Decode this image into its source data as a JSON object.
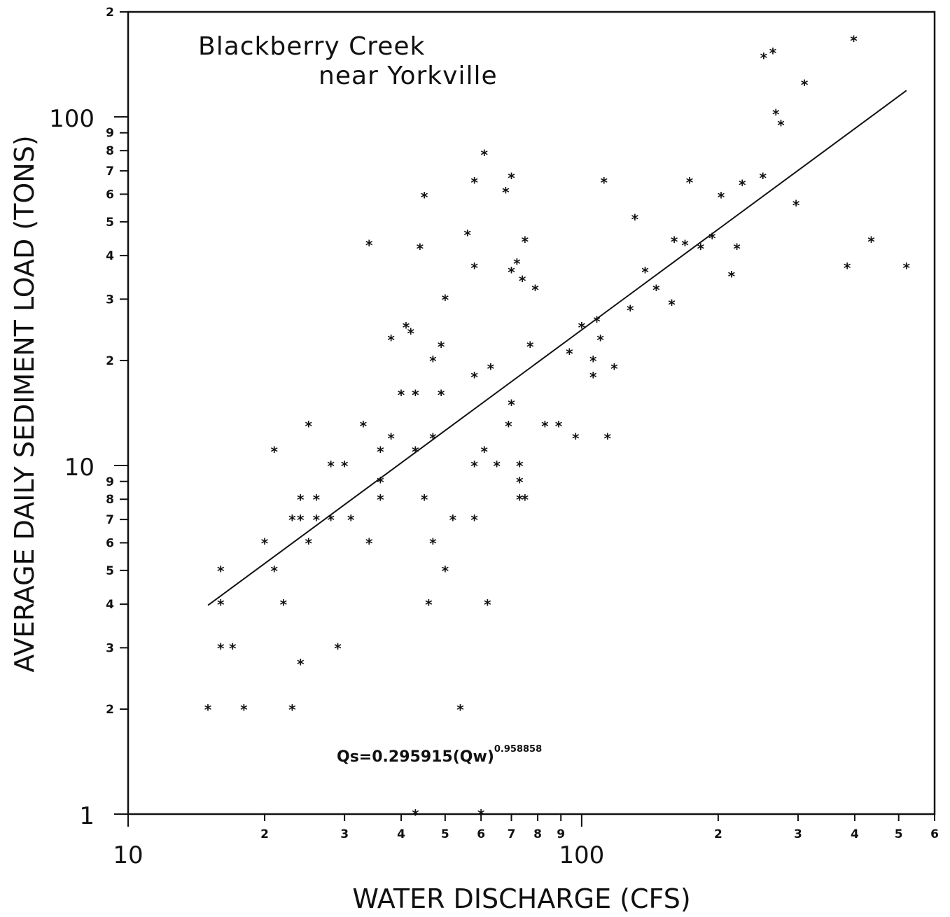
{
  "chart_data": {
    "type": "scatter",
    "title": "Blackberry Creek",
    "subtitle": "near Yorkville",
    "xlabel": "WATER DISCHARGE (CFS)",
    "ylabel": "AVERAGE DAILY SEDIMENT LOAD (TONS)",
    "x_scale": "log",
    "y_scale": "log",
    "xlim": [
      10,
      600
    ],
    "ylim": [
      1,
      200
    ],
    "grid": false,
    "x_major_ticks": [
      {
        "value": 10,
        "label": "10"
      },
      {
        "value": 100,
        "label": "100"
      }
    ],
    "x_minor_ticks": [
      {
        "value": 20,
        "label": "2"
      },
      {
        "value": 30,
        "label": "3"
      },
      {
        "value": 40,
        "label": "4"
      },
      {
        "value": 50,
        "label": "5"
      },
      {
        "value": 60,
        "label": "6"
      },
      {
        "value": 70,
        "label": "7"
      },
      {
        "value": 80,
        "label": "8"
      },
      {
        "value": 90,
        "label": "9"
      },
      {
        "value": 200,
        "label": "2"
      },
      {
        "value": 300,
        "label": "3"
      },
      {
        "value": 400,
        "label": "4"
      },
      {
        "value": 500,
        "label": "5"
      },
      {
        "value": 600,
        "label": "6"
      }
    ],
    "y_major_ticks": [
      {
        "value": 1,
        "label": "1"
      },
      {
        "value": 10,
        "label": "10"
      },
      {
        "value": 100,
        "label": "100"
      }
    ],
    "y_minor_ticks": [
      {
        "value": 2,
        "label": "2"
      },
      {
        "value": 3,
        "label": "3"
      },
      {
        "value": 4,
        "label": "4"
      },
      {
        "value": 5,
        "label": "5"
      },
      {
        "value": 6,
        "label": "6"
      },
      {
        "value": 7,
        "label": "7"
      },
      {
        "value": 8,
        "label": "8"
      },
      {
        "value": 9,
        "label": "9"
      },
      {
        "value": 20,
        "label": "2"
      },
      {
        "value": 30,
        "label": "3"
      },
      {
        "value": 40,
        "label": "4"
      },
      {
        "value": 50,
        "label": "5"
      },
      {
        "value": 60,
        "label": "6"
      },
      {
        "value": 70,
        "label": "7"
      },
      {
        "value": 80,
        "label": "8"
      },
      {
        "value": 90,
        "label": "9"
      },
      {
        "value": 200,
        "label": "2"
      }
    ],
    "equation": {
      "base": "Qs=0.295915(Qw)",
      "exponent": "0.958858"
    },
    "regression": {
      "coefficient": 0.295915,
      "exponent": 0.958858,
      "x_range": [
        15,
        520
      ]
    },
    "series": [
      {
        "marker": "*",
        "points": [
          [
            15,
            2
          ],
          [
            16,
            5
          ],
          [
            16,
            4
          ],
          [
            16,
            3
          ],
          [
            17,
            3
          ],
          [
            18,
            2
          ],
          [
            20,
            6
          ],
          [
            21,
            11
          ],
          [
            21,
            5
          ],
          [
            22,
            4
          ],
          [
            23,
            7
          ],
          [
            23,
            2
          ],
          [
            24,
            8
          ],
          [
            24,
            7
          ],
          [
            24,
            2.7
          ],
          [
            25,
            13
          ],
          [
            25,
            6
          ],
          [
            26,
            8
          ],
          [
            26,
            7
          ],
          [
            28,
            10
          ],
          [
            28,
            7
          ],
          [
            29,
            3
          ],
          [
            30,
            10
          ],
          [
            31,
            7
          ],
          [
            33,
            13
          ],
          [
            34,
            43
          ],
          [
            34,
            6
          ],
          [
            36,
            11
          ],
          [
            36,
            9
          ],
          [
            36,
            8
          ],
          [
            38,
            23
          ],
          [
            38,
            12
          ],
          [
            40,
            16
          ],
          [
            41,
            25
          ],
          [
            42,
            24
          ],
          [
            43,
            16
          ],
          [
            43,
            11
          ],
          [
            43,
            1
          ],
          [
            44,
            42
          ],
          [
            45,
            59
          ],
          [
            45,
            8
          ],
          [
            46,
            4
          ],
          [
            47,
            20
          ],
          [
            47,
            12
          ],
          [
            47,
            6
          ],
          [
            49,
            22
          ],
          [
            49,
            16
          ],
          [
            50,
            30
          ],
          [
            50,
            5
          ],
          [
            52,
            7
          ],
          [
            54,
            2
          ],
          [
            56,
            46
          ],
          [
            58,
            65
          ],
          [
            58,
            37
          ],
          [
            58,
            18
          ],
          [
            58,
            10
          ],
          [
            58,
            7
          ],
          [
            60,
            1
          ],
          [
            61,
            78
          ],
          [
            61,
            11
          ],
          [
            62,
            4
          ],
          [
            63,
            19
          ],
          [
            65,
            10
          ],
          [
            68,
            61
          ],
          [
            69,
            13
          ],
          [
            70,
            67
          ],
          [
            70,
            36
          ],
          [
            70,
            15
          ],
          [
            72,
            38
          ],
          [
            73,
            10
          ],
          [
            73,
            9
          ],
          [
            73,
            8
          ],
          [
            74,
            34
          ],
          [
            75,
            44
          ],
          [
            75,
            8
          ],
          [
            77,
            22
          ],
          [
            79,
            32
          ],
          [
            83,
            13
          ],
          [
            89,
            13
          ],
          [
            94,
            21
          ],
          [
            97,
            12
          ],
          [
            100,
            25
          ],
          [
            106,
            20
          ],
          [
            106,
            18
          ],
          [
            108,
            26
          ],
          [
            110,
            23
          ],
          [
            112,
            65
          ],
          [
            114,
            12
          ],
          [
            118,
            19
          ],
          [
            128,
            28
          ],
          [
            131,
            51
          ],
          [
            138,
            36
          ],
          [
            146,
            32
          ],
          [
            158,
            29
          ],
          [
            160,
            44
          ],
          [
            169,
            43
          ],
          [
            173,
            65
          ],
          [
            183,
            42
          ],
          [
            194,
            45
          ],
          [
            203,
            59
          ],
          [
            214,
            35
          ],
          [
            220,
            42
          ],
          [
            226,
            64
          ],
          [
            251,
            67
          ],
          [
            252,
            148
          ],
          [
            264,
            153
          ],
          [
            268,
            102
          ],
          [
            275,
            95
          ],
          [
            297,
            56
          ],
          [
            310,
            124
          ],
          [
            385,
            37
          ],
          [
            398,
            166
          ],
          [
            435,
            44
          ],
          [
            520,
            37
          ]
        ]
      }
    ]
  }
}
